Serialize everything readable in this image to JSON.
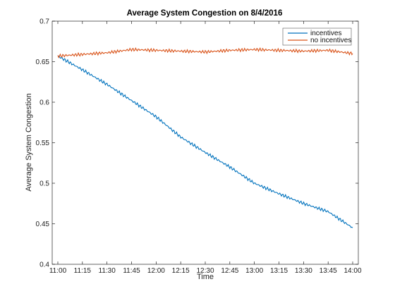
{
  "chart_data": {
    "type": "line",
    "title": "Average System Congestion on 8/4/2016",
    "xlabel": "Time",
    "ylabel": "Average System Congestion",
    "x_ticks": [
      "11:00",
      "11:15",
      "11:30",
      "11:45",
      "12:00",
      "12:15",
      "12:30",
      "12:45",
      "13:00",
      "13:15",
      "13:30",
      "13:45",
      "14:00"
    ],
    "x": [
      "11:00",
      "11:15",
      "11:30",
      "11:45",
      "12:00",
      "12:15",
      "12:30",
      "12:45",
      "13:00",
      "13:15",
      "13:30",
      "13:45",
      "14:00"
    ],
    "ylim": [
      0.4,
      0.7
    ],
    "y_ticks": [
      0.4,
      0.45,
      0.5,
      0.55,
      0.6,
      0.65,
      0.7
    ],
    "y_tick_labels": [
      "0.4",
      "0.45",
      "0.5",
      "0.55",
      "0.6",
      "0.65",
      "0.7"
    ],
    "grid": false,
    "legend_position": "top-right",
    "series": [
      {
        "name": "incentives",
        "color": "#0072BD",
        "values": [
          0.657,
          0.64,
          0.622,
          0.602,
          0.582,
          0.557,
          0.538,
          0.52,
          0.5,
          0.487,
          0.475,
          0.465,
          0.445
        ]
      },
      {
        "name": "no incentives",
        "color": "#D95319",
        "values": [
          0.657,
          0.659,
          0.661,
          0.665,
          0.664,
          0.663,
          0.662,
          0.664,
          0.665,
          0.664,
          0.663,
          0.664,
          0.66
        ]
      }
    ]
  }
}
